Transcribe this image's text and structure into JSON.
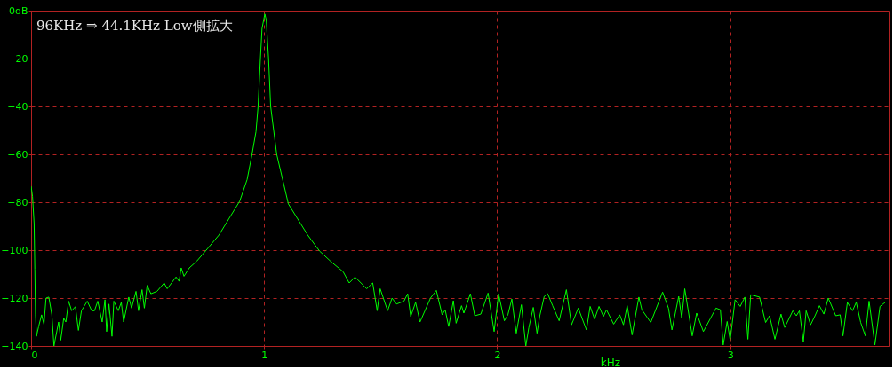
{
  "chart_data": {
    "type": "line",
    "title": "96KHz ⇒ 44.1KHz Low側拡大",
    "xlabel": "kHz",
    "xlim": [
      0,
      3.68
    ],
    "xticks": [
      0,
      1,
      2,
      3
    ],
    "ylim": [
      -140,
      0
    ],
    "yticks": [
      {
        "value": 0,
        "label": "0dB"
      },
      -20,
      -40,
      -60,
      -80,
      -100,
      -120,
      -140
    ],
    "grid": true,
    "line_style": "solid",
    "marker": "none",
    "series": [
      {
        "color": "#00ff00",
        "x": [
          0,
          0.006,
          0.013,
          0.016,
          0.019,
          0.023,
          0.032,
          0.045,
          0.055,
          0.064,
          0.076,
          0.089,
          0.098,
          0.108,
          0.118,
          0.127,
          0.14,
          0.149,
          0.161,
          0.174,
          0.19,
          0.203,
          0.216,
          0.241,
          0.26,
          0.272,
          0.286,
          0.305,
          0.317,
          0.324,
          0.334,
          0.347,
          0.355,
          0.374,
          0.387,
          0.397,
          0.419,
          0.431,
          0.45,
          0.461,
          0.476,
          0.486,
          0.498,
          0.514,
          0.54,
          0.571,
          0.584,
          0.622,
          0.635,
          0.644,
          0.656,
          0.679,
          0.711,
          0.755,
          0.806,
          0.85,
          0.895,
          0.927,
          0.948,
          0.965,
          0.974,
          0.984,
          0.991,
          1.003,
          1.009,
          1.019,
          1.028,
          1.054,
          1.104,
          1.187,
          1.238,
          1.288,
          1.339,
          1.365,
          1.39,
          1.44,
          1.466,
          1.485,
          1.498,
          1.53,
          1.549,
          1.568,
          1.6,
          1.616,
          1.629,
          1.65,
          1.669,
          1.714,
          1.739,
          1.764,
          1.777,
          1.792,
          1.812,
          1.824,
          1.847,
          1.857,
          1.885,
          1.904,
          1.93,
          1.961,
          1.987,
          2.006,
          2.031,
          2.046,
          2.063,
          2.082,
          2.104,
          2.123,
          2.136,
          2.155,
          2.171,
          2.183,
          2.202,
          2.217,
          2.238,
          2.266,
          2.297,
          2.319,
          2.348,
          2.383,
          2.399,
          2.418,
          2.437,
          2.456,
          2.469,
          2.5,
          2.526,
          2.542,
          2.558,
          2.579,
          2.608,
          2.621,
          2.659,
          2.71,
          2.735,
          2.75,
          2.779,
          2.792,
          2.805,
          2.837,
          2.856,
          2.885,
          2.939,
          2.958,
          2.97,
          2.987,
          3.0,
          3.021,
          3.043,
          3.063,
          3.076,
          3.088,
          3.126,
          3.152,
          3.169,
          3.192,
          3.218,
          3.234,
          3.269,
          3.284,
          3.297,
          3.314,
          3.326,
          3.345,
          3.364,
          3.383,
          3.402,
          3.421,
          3.453,
          3.472,
          3.484,
          3.503,
          3.525,
          3.541,
          3.56,
          3.58,
          3.596,
          3.621,
          3.643,
          3.665
        ],
        "values": [
          -73.3,
          -77.5,
          -89,
          -108,
          -127,
          -136,
          -132,
          -127,
          -131,
          -120,
          -119.6,
          -127,
          -140,
          -135,
          -130,
          -137.6,
          -128.4,
          -130,
          -121.3,
          -125.3,
          -123.6,
          -133.5,
          -125.3,
          -121.3,
          -125.3,
          -125.3,
          -121.3,
          -130,
          -120.7,
          -134,
          -122.5,
          -136,
          -121.3,
          -125.3,
          -121.8,
          -130,
          -119.6,
          -124.2,
          -117.2,
          -125.3,
          -116.5,
          -124.2,
          -114.7,
          -118.2,
          -117.2,
          -113.7,
          -116.1,
          -111.2,
          -113,
          -107.4,
          -110.9,
          -107.4,
          -104.6,
          -99.6,
          -93.7,
          -86.7,
          -79.6,
          -70.5,
          -60,
          -50.5,
          -40,
          -20,
          -7.4,
          -1.4,
          -3.9,
          -20,
          -40,
          -60,
          -80.7,
          -93.7,
          -100.4,
          -104.9,
          -109,
          -113.7,
          -111.2,
          -116.1,
          -113.7,
          -125.3,
          -116.1,
          -125.3,
          -120,
          -122.5,
          -121.3,
          -118.2,
          -127.7,
          -121.8,
          -130,
          -120,
          -116.8,
          -127,
          -124.9,
          -131.9,
          -121.1,
          -130.5,
          -123.2,
          -126.3,
          -118.2,
          -127.4,
          -126.7,
          -117.9,
          -134,
          -118.2,
          -129.5,
          -127,
          -120.4,
          -134.7,
          -122.8,
          -140,
          -132.3,
          -123.9,
          -134.7,
          -127.4,
          -119.3,
          -118.2,
          -123.2,
          -129.5,
          -116.5,
          -131.2,
          -124.2,
          -133.3,
          -123.5,
          -128.8,
          -123.5,
          -127.7,
          -124.9,
          -130.9,
          -127,
          -131.2,
          -123.2,
          -135.4,
          -119.6,
          -124.9,
          -130.2,
          -117.5,
          -124.2,
          -133.3,
          -119.3,
          -128.4,
          -116.1,
          -135.8,
          -126.3,
          -134,
          -124.2,
          -124.9,
          -139.6,
          -129.8,
          -137.6,
          -120.7,
          -123.5,
          -119.6,
          -137.2,
          -118.6,
          -119.6,
          -130.2,
          -127.4,
          -137.2,
          -126.7,
          -132.3,
          -125.3,
          -127.4,
          -125.3,
          -138.2,
          -125.3,
          -131.2,
          -127.4,
          -123.2,
          -126.7,
          -120,
          -127.4,
          -127,
          -135.8,
          -121.8,
          -125.3,
          -121.8,
          -130.2,
          -135.8,
          -121.3,
          -139.6,
          -123.5,
          -121.8
        ]
      }
    ]
  }
}
